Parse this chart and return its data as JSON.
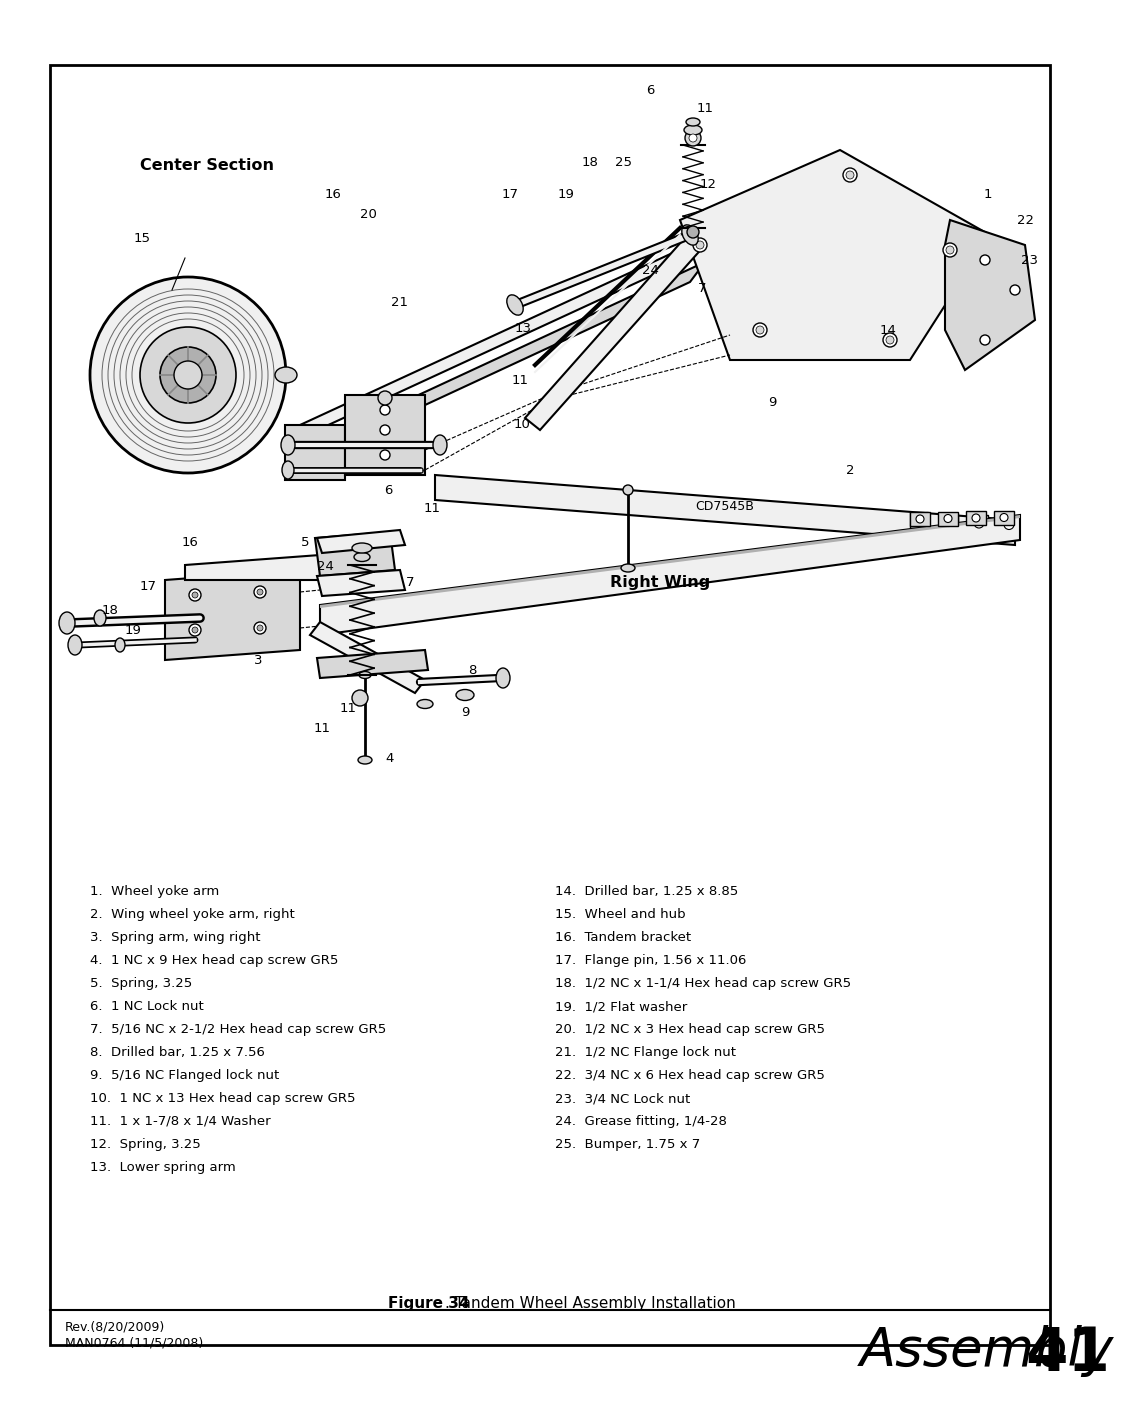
{
  "page_bg": "#ffffff",
  "border_color": "#000000",
  "figure_caption_bold": "Figure 34",
  "figure_caption_rest": ". Tandem Wheel Assembly Installation",
  "footer_left_line1": "Rev.(8/20/2009)",
  "footer_left_line2": "MAN0764 (11/5/2008)",
  "footer_right_italic": "Assembly",
  "footer_right_bold": "41",
  "center_section_label": "Center Section",
  "right_wing_label": "Right Wing",
  "diagram_label": "CD7545B",
  "parts_list_col1": [
    "1.  Wheel yoke arm",
    "2.  Wing wheel yoke arm, right",
    "3.  Spring arm, wing right",
    "4.  1 NC x 9 Hex head cap screw GR5",
    "5.  Spring, 3.25",
    "6.  1 NC Lock nut",
    "7.  5/16 NC x 2-1/2 Hex head cap screw GR5",
    "8.  Drilled bar, 1.25 x 7.56",
    "9.  5/16 NC Flanged lock nut",
    "10.  1 NC x 13 Hex head cap screw GR5",
    "11.  1 x 1-7/8 x 1/4 Washer",
    "12.  Spring, 3.25",
    "13.  Lower spring arm"
  ],
  "parts_list_col2": [
    "14.  Drilled bar, 1.25 x 8.85",
    "15.  Wheel and hub",
    "16.  Tandem bracket",
    "17.  Flange pin, 1.56 x 11.06",
    "18.  1/2 NC x 1-1/4 Hex head cap screw GR5",
    "19.  1/2 Flat washer",
    "20.  1/2 NC x 3 Hex head cap screw GR5",
    "21.  1/2 NC Flange lock nut",
    "22.  3/4 NC x 6 Hex head cap screw GR5",
    "23.  3/4 NC Lock nut",
    "24.  Grease fitting, 1/4-28",
    "25.  Bumper, 1.75 x 7"
  ]
}
